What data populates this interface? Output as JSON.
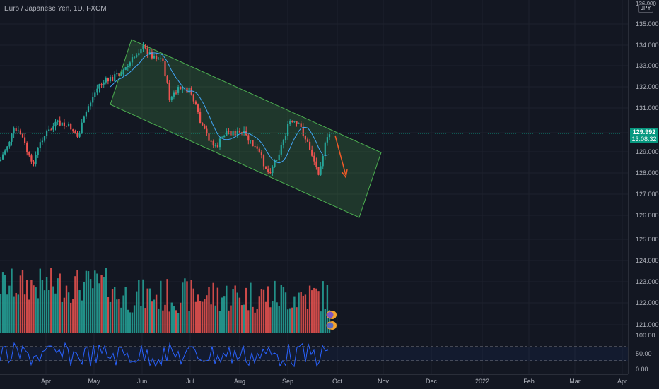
{
  "header": {
    "title": "Euro / Japanese Yen, 1D, FXCM"
  },
  "price_axis": {
    "currency": "JPY",
    "top_label": "136.000",
    "labels": [
      "135.000",
      "134.000",
      "133.000",
      "132.000",
      "131.000",
      "129.000",
      "128.000",
      "127.000",
      "126.000",
      "125.000",
      "124.000",
      "123.000",
      "122.000",
      "121.000"
    ],
    "current_price": "129.992",
    "countdown": "13:08:32",
    "oscillator_labels": [
      "100.00",
      "50.00",
      "0.00"
    ]
  },
  "time_axis": {
    "labels": [
      "Apr",
      "May",
      "Jun",
      "Jul",
      "Aug",
      "Sep",
      "Oct",
      "Nov",
      "Dec",
      "2022",
      "Feb",
      "Mar",
      "Apr"
    ]
  },
  "colors": {
    "background": "#131722",
    "up": "#26a69a",
    "down": "#ef5350",
    "channel": "#4caf50",
    "arrow": "#f05a28",
    "oscillator": "#2962ff",
    "moving_average": "#42a5f5"
  },
  "icons": [
    "channel-icon",
    "down-arrow-icon",
    "dividends-icon"
  ]
}
